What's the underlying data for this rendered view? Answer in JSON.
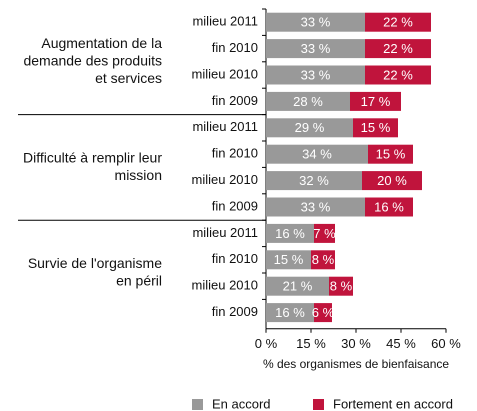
{
  "chart_data": {
    "type": "bar",
    "orientation": "horizontal",
    "stacked": true,
    "groups": [
      {
        "label": [
          "Augmentation de la",
          "demande des produits",
          "et services"
        ],
        "categories": [
          "milieu 2011",
          "fin 2010",
          "milieu 2010",
          "fin 2009"
        ]
      },
      {
        "label": [
          "Difficulté à remplir leur",
          "mission"
        ],
        "categories": [
          "milieu 2011",
          "fin 2010",
          "milieu 2010",
          "fin 2009"
        ]
      },
      {
        "label": [
          "Survie de l'organisme",
          "en péril"
        ],
        "categories": [
          "milieu 2011",
          "fin 2010",
          "milieu 2010",
          "fin 2009"
        ]
      }
    ],
    "series": [
      {
        "name": "En accord",
        "color": "#999999",
        "values": [
          33,
          33,
          33,
          28,
          29,
          34,
          32,
          33,
          16,
          15,
          21,
          16
        ],
        "value_labels": [
          "33 %",
          "33 %",
          "33 %",
          "28 %",
          "29 %",
          "34 %",
          "32 %",
          "33 %",
          "16 %",
          "15 %",
          "21 %",
          "16 %"
        ]
      },
      {
        "name": "Fortement en accord",
        "color": "#c0143c",
        "values": [
          22,
          22,
          22,
          17,
          15,
          15,
          20,
          16,
          7,
          8,
          8,
          6
        ],
        "value_labels": [
          "22 %",
          "22 %",
          "22 %",
          "17 %",
          "15 %",
          "15 %",
          "20 %",
          "16 %",
          "7 %",
          "8 %",
          "8 %",
          "6 %"
        ]
      }
    ],
    "xlabel": "% des organismes de bienfaisance",
    "xlim": [
      0,
      60
    ],
    "xticks": [
      {
        "value": 0,
        "label": "0 %"
      },
      {
        "value": 15,
        "label": "15 %"
      },
      {
        "value": 30,
        "label": "30 %"
      },
      {
        "value": 45,
        "label": "45 %"
      },
      {
        "value": 60,
        "label": "60 %"
      }
    ]
  }
}
